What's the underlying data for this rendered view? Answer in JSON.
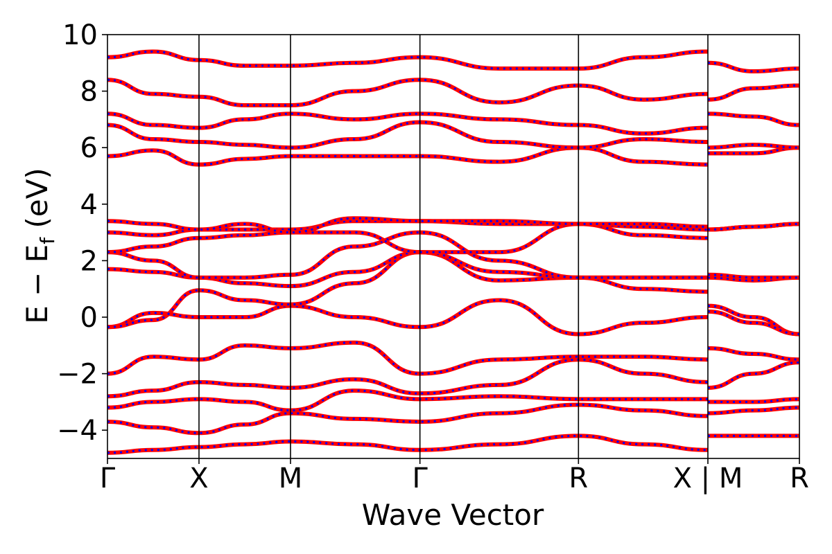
{
  "chart_data": {
    "type": "line",
    "title": "",
    "xlabel": "Wave Vector",
    "ylabel": "E − E",
    "ylabel_sub": "f",
    "ylabel_unit": "(eV)",
    "ylim": [
      -5,
      10
    ],
    "yticks": [
      -4,
      -2,
      0,
      2,
      4,
      6,
      8,
      10
    ],
    "ytick_labels": [
      "−4",
      "−2",
      "0",
      "2",
      "4",
      "6",
      "8",
      "10"
    ],
    "kpath": [
      {
        "label": "Γ",
        "k": 0.0
      },
      {
        "label": "X",
        "k": 0.5
      },
      {
        "label": "M",
        "k": 1.0
      },
      {
        "label": "Γ",
        "k": 1.707
      },
      {
        "label": "R",
        "k": 2.573
      },
      {
        "label": "X | M",
        "k": 3.28
      },
      {
        "label": "R",
        "k": 3.78
      }
    ],
    "xlim": [
      0,
      3.78
    ],
    "grid": false,
    "legend": "none",
    "series_colors": {
      "primary": "#ff0000",
      "overlay": "#0000ff"
    },
    "series": [
      {
        "x": [
          0,
          0.25,
          0.5,
          0.75,
          1.0,
          1.35,
          1.707,
          2.14,
          2.573,
          2.93,
          3.28,
          3.28,
          3.53,
          3.78
        ],
        "y": [
          -4.8,
          -4.7,
          -4.6,
          -4.5,
          -4.4,
          -4.5,
          -4.7,
          -4.5,
          -4.2,
          -4.5,
          -4.7,
          -4.2,
          -4.2,
          -4.2
        ]
      },
      {
        "x": [
          0,
          0.25,
          0.5,
          0.75,
          1.0,
          1.35,
          1.707,
          2.14,
          2.573,
          2.93,
          3.28,
          3.28,
          3.53,
          3.78
        ],
        "y": [
          -3.7,
          -3.9,
          -4.1,
          -3.8,
          -3.4,
          -3.6,
          -3.7,
          -3.4,
          -3.1,
          -3.3,
          -3.5,
          -3.4,
          -3.3,
          -3.2
        ]
      },
      {
        "x": [
          0,
          0.25,
          0.5,
          0.75,
          1.0,
          1.35,
          1.707,
          2.14,
          2.573,
          2.93,
          3.28,
          3.28,
          3.53,
          3.78
        ],
        "y": [
          -3.2,
          -3.0,
          -2.9,
          -3.0,
          -3.3,
          -2.6,
          -2.9,
          -2.8,
          -2.9,
          -2.9,
          -2.9,
          -3.0,
          -3.0,
          -2.9
        ]
      },
      {
        "x": [
          0,
          0.25,
          0.5,
          0.75,
          1.0,
          1.35,
          1.707,
          2.14,
          2.573,
          2.93,
          3.28,
          3.28,
          3.53,
          3.78
        ],
        "y": [
          -2.8,
          -2.6,
          -2.3,
          -2.4,
          -2.5,
          -2.2,
          -2.7,
          -2.4,
          -1.5,
          -2.0,
          -2.3,
          -2.5,
          -2.0,
          -1.6
        ]
      },
      {
        "x": [
          0,
          0.25,
          0.5,
          0.75,
          1.0,
          1.35,
          1.707,
          2.14,
          2.573,
          2.93,
          3.28,
          3.28,
          3.53,
          3.78
        ],
        "y": [
          -2.0,
          -1.4,
          -1.5,
          -1.0,
          -1.1,
          -0.9,
          -2.0,
          -1.5,
          -1.4,
          -1.4,
          -1.5,
          -1.1,
          -1.3,
          -1.5
        ]
      },
      {
        "x": [
          0,
          0.25,
          0.5,
          0.75,
          1.0,
          1.35,
          1.707,
          2.14,
          2.573,
          2.93,
          3.28,
          3.28,
          3.53,
          3.78
        ],
        "y": [
          -0.35,
          0.15,
          0.0,
          0.0,
          0.4,
          0.0,
          -0.35,
          0.6,
          -0.6,
          -0.2,
          0.0,
          0.4,
          0.0,
          -0.6
        ]
      },
      {
        "x": [
          0,
          0.25,
          0.5,
          0.75,
          1.0,
          1.35,
          1.707,
          2.14,
          2.573,
          2.93,
          3.28,
          3.28,
          3.53,
          3.78
        ],
        "y": [
          -0.35,
          -0.1,
          0.95,
          0.6,
          0.45,
          1.2,
          2.3,
          1.3,
          1.4,
          1.0,
          0.9,
          0.2,
          -0.2,
          -0.6
        ]
      },
      {
        "x": [
          0,
          0.25,
          0.5,
          0.75,
          1.0,
          1.35,
          1.707,
          2.14,
          2.573,
          2.93,
          3.28,
          3.28,
          3.53,
          3.78
        ],
        "y": [
          1.7,
          1.6,
          1.4,
          1.2,
          1.1,
          1.6,
          2.3,
          1.6,
          1.4,
          1.4,
          1.4,
          1.4,
          1.3,
          1.4
        ]
      },
      {
        "x": [
          0,
          0.25,
          0.5,
          0.75,
          1.0,
          1.35,
          1.707,
          2.14,
          2.573,
          2.93,
          3.28,
          3.28,
          3.53,
          3.78
        ],
        "y": [
          2.3,
          2.0,
          1.4,
          1.4,
          1.5,
          2.5,
          3.0,
          2.0,
          1.4,
          1.4,
          1.4,
          1.5,
          1.4,
          1.4
        ]
      },
      {
        "x": [
          0,
          0.25,
          0.5,
          0.75,
          1.0,
          1.35,
          1.707,
          2.14,
          2.573,
          2.93,
          3.28,
          3.28,
          3.53,
          3.78
        ],
        "y": [
          2.3,
          2.5,
          2.8,
          2.9,
          3.0,
          3.0,
          2.3,
          2.3,
          3.3,
          2.9,
          2.8,
          3.1,
          3.2,
          3.3
        ]
      },
      {
        "x": [
          0,
          0.25,
          0.5,
          0.75,
          1.0,
          1.35,
          1.707,
          2.14,
          2.573,
          2.93,
          3.28,
          3.28,
          3.53,
          3.78
        ],
        "y": [
          3.0,
          2.9,
          3.1,
          3.1,
          3.1,
          3.4,
          3.4,
          3.3,
          3.3,
          3.2,
          3.1,
          3.1,
          3.2,
          3.3
        ]
      },
      {
        "x": [
          0,
          0.25,
          0.5,
          0.75,
          1.0,
          1.35,
          1.707,
          2.14,
          2.573,
          2.93,
          3.28,
          3.28,
          3.53,
          3.78
        ],
        "y": [
          3.4,
          3.3,
          3.1,
          3.3,
          3.0,
          3.5,
          3.4,
          3.4,
          3.3,
          3.3,
          3.2,
          3.1,
          3.2,
          3.3
        ]
      },
      {
        "x": [
          0,
          0.25,
          0.5,
          0.75,
          1.0,
          1.35,
          1.707,
          2.14,
          2.573,
          2.93,
          3.28,
          3.28,
          3.53,
          3.78
        ],
        "y": [
          5.7,
          5.9,
          5.4,
          5.6,
          5.7,
          5.7,
          5.7,
          5.5,
          6.0,
          5.5,
          5.4,
          5.8,
          5.8,
          6.0
        ]
      },
      {
        "x": [
          0,
          0.25,
          0.5,
          0.75,
          1.0,
          1.35,
          1.707,
          2.14,
          2.573,
          2.93,
          3.28,
          3.28,
          3.53,
          3.78
        ],
        "y": [
          6.8,
          6.3,
          6.2,
          6.1,
          6.0,
          6.3,
          6.9,
          6.2,
          6.0,
          6.3,
          6.2,
          6.0,
          6.1,
          6.0
        ]
      },
      {
        "x": [
          0,
          0.25,
          0.5,
          0.75,
          1.0,
          1.35,
          1.707,
          2.14,
          2.573,
          2.93,
          3.28,
          3.28,
          3.53,
          3.78
        ],
        "y": [
          7.2,
          6.8,
          6.7,
          7.0,
          7.2,
          7.0,
          7.2,
          7.0,
          6.8,
          6.5,
          6.7,
          7.2,
          7.1,
          6.8
        ]
      },
      {
        "x": [
          0,
          0.25,
          0.5,
          0.75,
          1.0,
          1.35,
          1.707,
          2.14,
          2.573,
          2.93,
          3.28,
          3.28,
          3.53,
          3.78
        ],
        "y": [
          8.4,
          7.9,
          7.8,
          7.5,
          7.5,
          8.0,
          8.4,
          7.6,
          8.2,
          7.7,
          7.9,
          7.7,
          8.1,
          8.2
        ]
      },
      {
        "x": [
          0,
          0.25,
          0.5,
          0.75,
          1.0,
          1.35,
          1.707,
          2.14,
          2.573,
          2.93,
          3.28,
          3.28,
          3.53,
          3.78
        ],
        "y": [
          9.2,
          9.4,
          9.1,
          8.9,
          8.9,
          9.0,
          9.2,
          8.8,
          8.8,
          9.2,
          9.4,
          9.0,
          8.7,
          8.8
        ]
      }
    ]
  }
}
